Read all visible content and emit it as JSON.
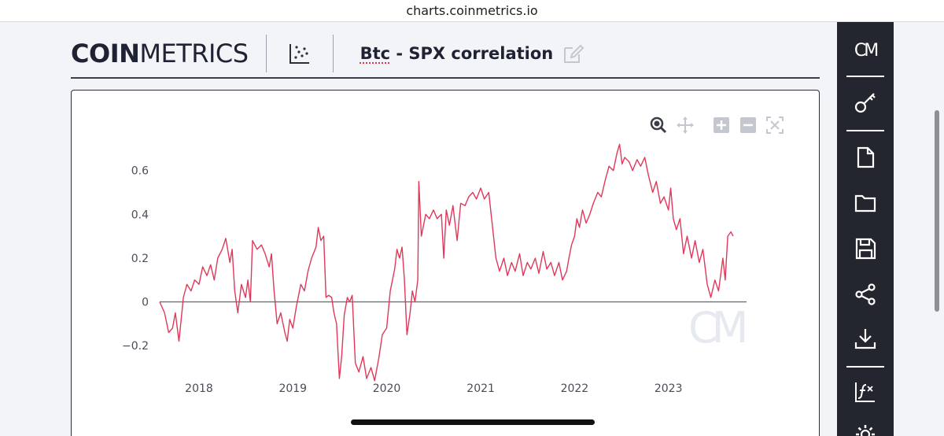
{
  "browser": {
    "url": "charts.coinmetrics.io"
  },
  "header": {
    "logo_bold": "COIN",
    "logo_light": "METRICS",
    "title_part1": "Btc",
    "title_part2": " - SPX correlation"
  },
  "sidebar": {
    "logo": "CM",
    "items": [
      "key-icon",
      "new-file-icon",
      "folder-icon",
      "save-icon",
      "share-icon",
      "download-icon",
      "formula-icon",
      "settings-icon"
    ]
  },
  "toolbar": [
    "zoom-icon",
    "pan-icon",
    "zoom-in-icon",
    "zoom-out-icon",
    "reset-zoom-icon"
  ],
  "chart_data": {
    "type": "line",
    "title": "Btc - SPX correlation",
    "xlabel": "",
    "ylabel": "",
    "xlim": [
      "2017-08-01",
      "2023-11-01"
    ],
    "ylim": [
      -0.3,
      0.75
    ],
    "y_ticks": [
      -0.2,
      0,
      0.2,
      0.4,
      0.6
    ],
    "y_tick_labels": [
      "−0.2",
      "0",
      "0.2",
      "0.4",
      "0.6"
    ],
    "x_ticks": [
      "2018",
      "2019",
      "2020",
      "2021",
      "2022",
      "2023"
    ],
    "grid": false,
    "line_color": "#e0385a",
    "watermark": "CM",
    "series": [
      {
        "points": [
          [
            "2017-08-01",
            0.0
          ],
          [
            "2017-08-20",
            -0.05
          ],
          [
            "2017-09-05",
            -0.14
          ],
          [
            "2017-09-20",
            -0.12
          ],
          [
            "2017-10-01",
            -0.05
          ],
          [
            "2017-10-15",
            -0.18
          ],
          [
            "2017-11-01",
            0.02
          ],
          [
            "2017-11-15",
            0.08
          ],
          [
            "2017-12-01",
            0.05
          ],
          [
            "2017-12-15",
            0.1
          ],
          [
            "2018-01-01",
            0.08
          ],
          [
            "2018-01-15",
            0.16
          ],
          [
            "2018-02-01",
            0.12
          ],
          [
            "2018-02-15",
            0.17
          ],
          [
            "2018-03-01",
            0.1
          ],
          [
            "2018-03-15",
            0.2
          ],
          [
            "2018-04-01",
            0.24
          ],
          [
            "2018-04-15",
            0.29
          ],
          [
            "2018-05-01",
            0.18
          ],
          [
            "2018-05-10",
            0.24
          ],
          [
            "2018-05-20",
            0.05
          ],
          [
            "2018-06-01",
            -0.05
          ],
          [
            "2018-06-15",
            0.08
          ],
          [
            "2018-07-01",
            0.02
          ],
          [
            "2018-07-10",
            0.1
          ],
          [
            "2018-07-20",
            0.0
          ],
          [
            "2018-07-28",
            0.28
          ],
          [
            "2018-08-15",
            0.24
          ],
          [
            "2018-09-01",
            0.26
          ],
          [
            "2018-09-15",
            0.22
          ],
          [
            "2018-10-01",
            0.16
          ],
          [
            "2018-10-10",
            0.22
          ],
          [
            "2018-10-20",
            0.05
          ],
          [
            "2018-11-01",
            -0.1
          ],
          [
            "2018-11-15",
            -0.05
          ],
          [
            "2018-12-01",
            -0.14
          ],
          [
            "2018-12-10",
            -0.18
          ],
          [
            "2018-12-20",
            -0.08
          ],
          [
            "2019-01-01",
            -0.12
          ],
          [
            "2019-01-15",
            -0.02
          ],
          [
            "2019-02-01",
            0.08
          ],
          [
            "2019-02-15",
            0.05
          ],
          [
            "2019-03-01",
            0.14
          ],
          [
            "2019-03-15",
            0.2
          ],
          [
            "2019-04-01",
            0.25
          ],
          [
            "2019-04-10",
            0.34
          ],
          [
            "2019-04-20",
            0.28
          ],
          [
            "2019-05-01",
            0.3
          ],
          [
            "2019-05-10",
            0.02
          ],
          [
            "2019-05-20",
            0.03
          ],
          [
            "2019-06-01",
            0.02
          ],
          [
            "2019-06-10",
            -0.05
          ],
          [
            "2019-06-20",
            -0.1
          ],
          [
            "2019-07-01",
            -0.35
          ],
          [
            "2019-07-10",
            -0.25
          ],
          [
            "2019-07-20",
            -0.06
          ],
          [
            "2019-08-01",
            0.02
          ],
          [
            "2019-08-10",
            0.0
          ],
          [
            "2019-08-20",
            0.03
          ],
          [
            "2019-09-01",
            -0.28
          ],
          [
            "2019-09-15",
            -0.32
          ],
          [
            "2019-10-01",
            -0.25
          ],
          [
            "2019-10-15",
            -0.35
          ],
          [
            "2019-11-01",
            -0.3
          ],
          [
            "2019-11-15",
            -0.36
          ],
          [
            "2019-12-01",
            -0.26
          ],
          [
            "2019-12-15",
            -0.15
          ],
          [
            "2020-01-01",
            -0.12
          ],
          [
            "2020-01-15",
            0.05
          ],
          [
            "2020-02-01",
            0.15
          ],
          [
            "2020-02-10",
            0.24
          ],
          [
            "2020-02-20",
            0.2
          ],
          [
            "2020-03-01",
            0.25
          ],
          [
            "2020-03-10",
            0.1
          ],
          [
            "2020-03-20",
            -0.15
          ],
          [
            "2020-04-01",
            -0.05
          ],
          [
            "2020-04-10",
            0.05
          ],
          [
            "2020-04-20",
            0.0
          ],
          [
            "2020-05-01",
            0.1
          ],
          [
            "2020-05-05",
            0.55
          ],
          [
            "2020-05-15",
            0.3
          ],
          [
            "2020-06-01",
            0.4
          ],
          [
            "2020-06-15",
            0.38
          ],
          [
            "2020-07-01",
            0.42
          ],
          [
            "2020-07-15",
            0.38
          ],
          [
            "2020-08-01",
            0.4
          ],
          [
            "2020-08-10",
            0.2
          ],
          [
            "2020-08-20",
            0.42
          ],
          [
            "2020-09-01",
            0.35
          ],
          [
            "2020-09-15",
            0.44
          ],
          [
            "2020-10-01",
            0.28
          ],
          [
            "2020-10-15",
            0.45
          ],
          [
            "2020-11-01",
            0.44
          ],
          [
            "2020-11-15",
            0.48
          ],
          [
            "2020-12-01",
            0.5
          ],
          [
            "2020-12-15",
            0.47
          ],
          [
            "2021-01-01",
            0.52
          ],
          [
            "2021-01-15",
            0.47
          ],
          [
            "2021-02-01",
            0.5
          ],
          [
            "2021-03-01",
            0.2
          ],
          [
            "2021-03-15",
            0.14
          ],
          [
            "2021-04-01",
            0.2
          ],
          [
            "2021-04-15",
            0.12
          ],
          [
            "2021-05-01",
            0.18
          ],
          [
            "2021-05-15",
            0.14
          ],
          [
            "2021-06-01",
            0.22
          ],
          [
            "2021-06-15",
            0.12
          ],
          [
            "2021-07-01",
            0.18
          ],
          [
            "2021-07-15",
            0.15
          ],
          [
            "2021-08-01",
            0.2
          ],
          [
            "2021-08-15",
            0.13
          ],
          [
            "2021-09-01",
            0.23
          ],
          [
            "2021-09-15",
            0.15
          ],
          [
            "2021-10-01",
            0.18
          ],
          [
            "2021-10-15",
            0.12
          ],
          [
            "2021-11-01",
            0.18
          ],
          [
            "2021-11-15",
            0.1
          ],
          [
            "2021-12-01",
            0.14
          ],
          [
            "2021-12-10",
            0.2
          ],
          [
            "2021-12-20",
            0.26
          ],
          [
            "2022-01-01",
            0.3
          ],
          [
            "2022-01-10",
            0.38
          ],
          [
            "2022-01-20",
            0.34
          ],
          [
            "2022-02-01",
            0.42
          ],
          [
            "2022-02-15",
            0.36
          ],
          [
            "2022-03-01",
            0.4
          ],
          [
            "2022-03-15",
            0.45
          ],
          [
            "2022-04-01",
            0.5
          ],
          [
            "2022-04-15",
            0.48
          ],
          [
            "2022-05-01",
            0.56
          ],
          [
            "2022-05-15",
            0.62
          ],
          [
            "2022-06-01",
            0.6
          ],
          [
            "2022-06-15",
            0.68
          ],
          [
            "2022-06-25",
            0.72
          ],
          [
            "2022-07-05",
            0.63
          ],
          [
            "2022-07-15",
            0.66
          ],
          [
            "2022-08-01",
            0.64
          ],
          [
            "2022-08-15",
            0.6
          ],
          [
            "2022-09-01",
            0.65
          ],
          [
            "2022-09-15",
            0.62
          ],
          [
            "2022-10-01",
            0.66
          ],
          [
            "2022-10-15",
            0.58
          ],
          [
            "2022-11-01",
            0.5
          ],
          [
            "2022-11-15",
            0.55
          ],
          [
            "2022-12-01",
            0.45
          ],
          [
            "2022-12-15",
            0.48
          ],
          [
            "2023-01-01",
            0.42
          ],
          [
            "2023-01-10",
            0.52
          ],
          [
            "2023-01-20",
            0.38
          ],
          [
            "2023-02-01",
            0.33
          ],
          [
            "2023-02-15",
            0.38
          ],
          [
            "2023-03-01",
            0.22
          ],
          [
            "2023-03-15",
            0.3
          ],
          [
            "2023-04-01",
            0.2
          ],
          [
            "2023-04-15",
            0.28
          ],
          [
            "2023-05-01",
            0.18
          ],
          [
            "2023-05-15",
            0.24
          ],
          [
            "2023-06-01",
            0.08
          ],
          [
            "2023-06-15",
            0.02
          ],
          [
            "2023-07-01",
            0.1
          ],
          [
            "2023-07-15",
            0.05
          ],
          [
            "2023-08-01",
            0.2
          ],
          [
            "2023-08-10",
            0.1
          ],
          [
            "2023-08-20",
            0.3
          ],
          [
            "2023-09-01",
            0.32
          ],
          [
            "2023-09-10",
            0.3
          ]
        ]
      }
    ]
  }
}
